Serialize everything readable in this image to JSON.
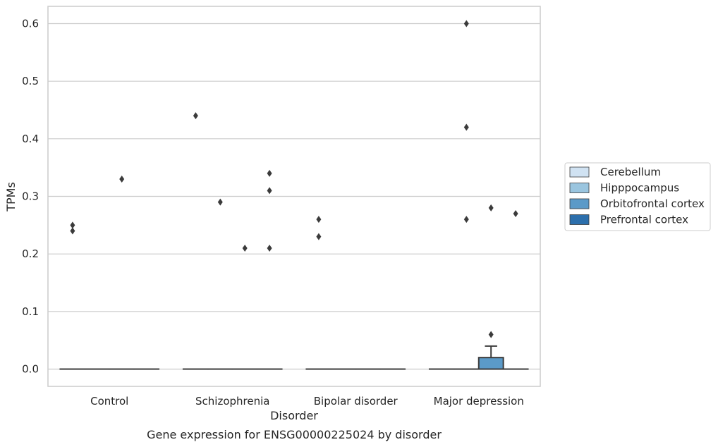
{
  "chart_data": {
    "type": "box",
    "title": "",
    "caption": "Gene expression for ENSG00000225024 by disorder",
    "xlabel": "Disorder",
    "ylabel": "TPMs",
    "ylim": [
      -0.03,
      0.63
    ],
    "yticks": [
      "0.0",
      "0.1",
      "0.2",
      "0.3",
      "0.4",
      "0.5",
      "0.6"
    ],
    "grid": "horizontal",
    "legend_placement": "right",
    "categories": [
      "Control",
      "Schizophrenia",
      "Bipolar disorder",
      "Major depression"
    ],
    "series": [
      {
        "name": "Cerebellum",
        "color": "#d0e2f2",
        "boxes": [
          {
            "q1": 0,
            "median": 0,
            "q3": 0,
            "whisker_low": 0,
            "whisker_high": 0,
            "outliers": [
              0.24,
              0.25
            ]
          },
          {
            "q1": 0,
            "median": 0,
            "q3": 0,
            "whisker_low": 0,
            "whisker_high": 0,
            "outliers": [
              0.44
            ]
          },
          {
            "q1": 0,
            "median": 0,
            "q3": 0,
            "whisker_low": 0,
            "whisker_high": 0,
            "outliers": [
              0.23,
              0.26
            ]
          },
          {
            "q1": 0,
            "median": 0,
            "q3": 0,
            "whisker_low": 0,
            "whisker_high": 0,
            "outliers": []
          }
        ]
      },
      {
        "name": "Hipppocampus",
        "color": "#9ac5df",
        "boxes": [
          {
            "q1": 0,
            "median": 0,
            "q3": 0,
            "whisker_low": 0,
            "whisker_high": 0,
            "outliers": []
          },
          {
            "q1": 0,
            "median": 0,
            "q3": 0,
            "whisker_low": 0,
            "whisker_high": 0,
            "outliers": [
              0.29
            ]
          },
          {
            "q1": 0,
            "median": 0,
            "q3": 0,
            "whisker_low": 0,
            "whisker_high": 0,
            "outliers": []
          },
          {
            "q1": 0,
            "median": 0,
            "q3": 0,
            "whisker_low": 0,
            "whisker_high": 0,
            "outliers": [
              0.26,
              0.42,
              0.6
            ]
          }
        ]
      },
      {
        "name": "Orbitofrontal cortex",
        "color": "#5b9ac8",
        "boxes": [
          {
            "q1": 0,
            "median": 0,
            "q3": 0,
            "whisker_low": 0,
            "whisker_high": 0,
            "outliers": [
              0.33
            ]
          },
          {
            "q1": 0,
            "median": 0,
            "q3": 0,
            "whisker_low": 0,
            "whisker_high": 0,
            "outliers": [
              0.21
            ]
          },
          {
            "q1": 0,
            "median": 0,
            "q3": 0,
            "whisker_low": 0,
            "whisker_high": 0,
            "outliers": []
          },
          {
            "q1": 0,
            "median": 0,
            "q3": 0.02,
            "whisker_low": 0,
            "whisker_high": 0.04,
            "outliers": [
              0.06,
              0.28
            ]
          }
        ]
      },
      {
        "name": "Prefrontal cortex",
        "color": "#2c6fac",
        "boxes": [
          {
            "q1": 0,
            "median": 0,
            "q3": 0,
            "whisker_low": 0,
            "whisker_high": 0,
            "outliers": []
          },
          {
            "q1": 0,
            "median": 0,
            "q3": 0,
            "whisker_low": 0,
            "whisker_high": 0,
            "outliers": [
              0.21,
              0.31,
              0.34
            ]
          },
          {
            "q1": 0,
            "median": 0,
            "q3": 0,
            "whisker_low": 0,
            "whisker_high": 0,
            "outliers": []
          },
          {
            "q1": 0,
            "median": 0,
            "q3": 0,
            "whisker_low": 0,
            "whisker_high": 0,
            "outliers": [
              0.27
            ]
          }
        ]
      }
    ]
  }
}
